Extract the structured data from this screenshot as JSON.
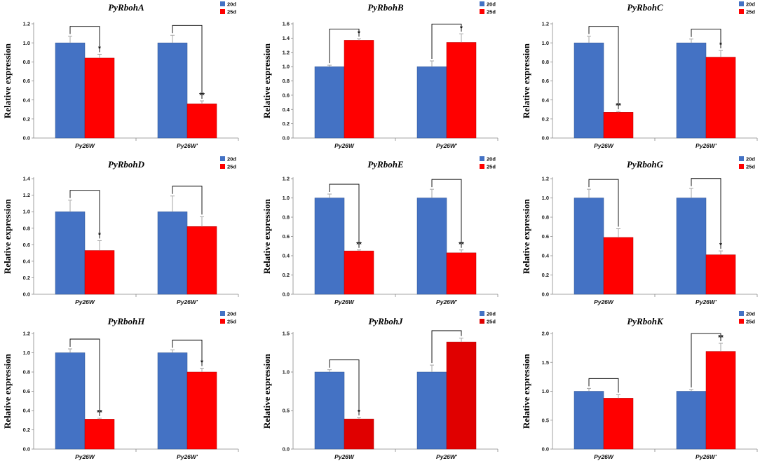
{
  "colors": {
    "series_20d": "#4472c4",
    "series_25d": "#ff0000",
    "series_25d_J": "#e00000",
    "error": "#a6a6a6",
    "bracket": "#000000"
  },
  "chart_data": [
    {
      "type": "bar",
      "title": "PyRbohA",
      "ylabel": "Relative expression",
      "categories": [
        "Py26W",
        "Py26W'"
      ],
      "legend": [
        "20d",
        "25d"
      ],
      "legend_position": "top-right",
      "ylim": [
        0,
        1.2
      ],
      "yticks": [
        "0.0",
        "0.2",
        "0.4",
        "0.6",
        "0.8",
        "1.0",
        "1.2"
      ],
      "series": [
        {
          "name": "20d",
          "values": [
            1.0,
            1.0
          ],
          "errors": [
            0.07,
            0.08
          ]
        },
        {
          "name": "25d",
          "values": [
            0.84,
            0.36
          ],
          "errors": [
            0.04,
            0.03
          ]
        }
      ],
      "significance": [
        "*",
        "**"
      ]
    },
    {
      "type": "bar",
      "title": "PyRbohB",
      "ylabel": "Relative expression",
      "categories": [
        "Py26W",
        "Py26W'"
      ],
      "legend": [
        "20d",
        "25d"
      ],
      "legend_position": "top-right",
      "ylim": [
        0,
        1.6
      ],
      "yticks": [
        "0.0",
        "0.2",
        "0.4",
        "0.6",
        "0.8",
        "1.0",
        "1.2",
        "1.4",
        "1.6"
      ],
      "series": [
        {
          "name": "20d",
          "values": [
            1.0,
            1.0
          ],
          "errors": [
            0.02,
            0.08
          ]
        },
        {
          "name": "25d",
          "values": [
            1.37,
            1.34
          ],
          "errors": [
            0.02,
            0.12
          ]
        }
      ],
      "significance": [
        "*",
        "*"
      ]
    },
    {
      "type": "bar",
      "title": "PyRbohC",
      "ylabel": "Relative expression",
      "categories": [
        "Py26W",
        "Py26W'"
      ],
      "legend": [
        "20d",
        "25d"
      ],
      "legend_position": "top-right",
      "ylim": [
        0,
        1.2
      ],
      "yticks": [
        "0.0",
        "0.2",
        "0.4",
        "0.6",
        "0.8",
        "1.0",
        "1.2"
      ],
      "series": [
        {
          "name": "20d",
          "values": [
            1.0,
            1.0
          ],
          "errors": [
            0.07,
            0.04
          ]
        },
        {
          "name": "25d",
          "values": [
            0.27,
            0.85
          ],
          "errors": [
            0.01,
            0.07
          ]
        }
      ],
      "significance": [
        "**",
        "*"
      ]
    },
    {
      "type": "bar",
      "title": "PyRbohD",
      "ylabel": "Relative expression",
      "categories": [
        "Py26W",
        "Py26W'"
      ],
      "legend": [
        "20d",
        "25d"
      ],
      "legend_position": "top-right",
      "ylim": [
        0,
        1.4
      ],
      "yticks": [
        "0.0",
        "0.2",
        "0.4",
        "0.6",
        "0.8",
        "1.0",
        "1.2",
        "1.4"
      ],
      "series": [
        {
          "name": "20d",
          "values": [
            1.0,
            1.0
          ],
          "errors": [
            0.14,
            0.19
          ]
        },
        {
          "name": "25d",
          "values": [
            0.53,
            0.82
          ],
          "errors": [
            0.12,
            0.12
          ]
        }
      ],
      "significance": [
        "*",
        ""
      ]
    },
    {
      "type": "bar",
      "title": "PyRbohE",
      "ylabel": "Relative expression",
      "categories": [
        "Py26W",
        "Py26W'"
      ],
      "legend": [
        "20d",
        "25d"
      ],
      "legend_position": "top-right",
      "ylim": [
        0,
        1.2
      ],
      "yticks": [
        "0.0",
        "0.2",
        "0.4",
        "0.6",
        "0.8",
        "1.0",
        "1.2"
      ],
      "series": [
        {
          "name": "20d",
          "values": [
            1.0,
            1.0
          ],
          "errors": [
            0.04,
            0.09
          ]
        },
        {
          "name": "25d",
          "values": [
            0.45,
            0.43
          ],
          "errors": [
            0.01,
            0.03
          ]
        }
      ],
      "significance": [
        "**",
        "**"
      ]
    },
    {
      "type": "bar",
      "title": "PyRbohG",
      "ylabel": "Relative expression",
      "categories": [
        "Py26W",
        "Py26W'"
      ],
      "legend": [
        "20d",
        "25d"
      ],
      "legend_position": "top-right",
      "ylim": [
        0,
        1.2
      ],
      "yticks": [
        "0.0",
        "0.2",
        "0.4",
        "0.6",
        "0.8",
        "1.0",
        "1.2"
      ],
      "series": [
        {
          "name": "20d",
          "values": [
            1.0,
            1.0
          ],
          "errors": [
            0.09,
            0.1
          ]
        },
        {
          "name": "25d",
          "values": [
            0.59,
            0.41
          ],
          "errors": [
            0.09,
            0.04
          ]
        }
      ],
      "significance": [
        "",
        "*"
      ]
    },
    {
      "type": "bar",
      "title": "PyRbohH",
      "ylabel": "Relative expression",
      "categories": [
        "Py26W",
        "Py26W'"
      ],
      "legend": [
        "20d",
        "25d"
      ],
      "legend_position": "top-right",
      "ylim": [
        0,
        1.2
      ],
      "yticks": [
        "0.0",
        "0.2",
        "0.4",
        "0.6",
        "0.8",
        "1.0",
        "1.2"
      ],
      "series": [
        {
          "name": "20d",
          "values": [
            1.0,
            1.0
          ],
          "errors": [
            0.04,
            0.03
          ]
        },
        {
          "name": "25d",
          "values": [
            0.31,
            0.8
          ],
          "errors": [
            0.01,
            0.04
          ]
        }
      ],
      "significance": [
        "**",
        "*"
      ]
    },
    {
      "type": "bar",
      "title": "PyRbohJ",
      "ylabel": "Relative expression",
      "categories": [
        "Py26W",
        "Py26W'"
      ],
      "legend": [
        "20d",
        "25d"
      ],
      "legend_position": "top-right",
      "ylim": [
        0,
        1.5
      ],
      "yticks": [
        "0.0",
        "0.5",
        "1.0",
        "1.5"
      ],
      "series": [
        {
          "name": "20d",
          "values": [
            1.0,
            1.0
          ],
          "errors": [
            0.03,
            0.09
          ]
        },
        {
          "name": "25d",
          "values": [
            0.39,
            1.39
          ],
          "errors": [
            0.02,
            0.05
          ]
        }
      ],
      "significance": [
        "*",
        ""
      ]
    },
    {
      "type": "bar",
      "title": "PyRbohK",
      "ylabel": "Relative expression",
      "categories": [
        "Py26W",
        "Py26W'"
      ],
      "legend": [
        "20d",
        "25d"
      ],
      "legend_position": "top-right",
      "ylim": [
        0,
        2.0
      ],
      "yticks": [
        "0.0",
        "0.5",
        "1.0",
        "1.5",
        "2.0"
      ],
      "series": [
        {
          "name": "20d",
          "values": [
            1.0,
            1.0
          ],
          "errors": [
            0.05,
            0.03
          ]
        },
        {
          "name": "25d",
          "values": [
            0.88,
            1.69
          ],
          "errors": [
            0.06,
            0.14
          ]
        }
      ],
      "significance": [
        "",
        "**"
      ]
    }
  ]
}
